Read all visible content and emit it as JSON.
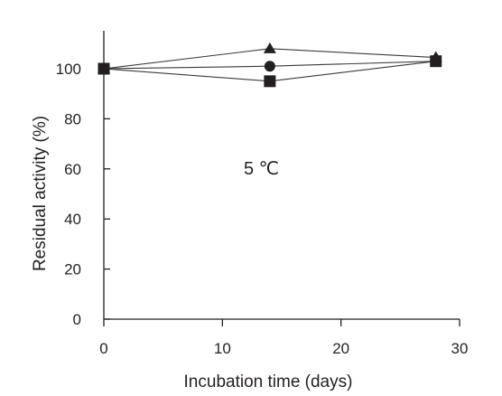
{
  "chart_data": {
    "type": "line",
    "xlabel": "Incubation time (days)",
    "ylabel": "Residual activity (%)",
    "xlim": [
      0,
      30
    ],
    "ylim": [
      0,
      115
    ],
    "xticks": [
      0,
      10,
      20,
      30
    ],
    "yticks": [
      0,
      20,
      40,
      60,
      80,
      100
    ],
    "annotation": "5 ℃",
    "grid": false,
    "colors": {
      "ink": "#231f20",
      "line": "#3a3a3a"
    },
    "series": [
      {
        "marker": "triangle",
        "x": [
          0,
          14,
          28
        ],
        "y": [
          100,
          108,
          104.5
        ]
      },
      {
        "marker": "circle",
        "x": [
          0,
          14,
          28
        ],
        "y": [
          100,
          101,
          103
        ]
      },
      {
        "marker": "square",
        "x": [
          0,
          14,
          28
        ],
        "y": [
          100,
          95,
          103
        ]
      }
    ]
  }
}
